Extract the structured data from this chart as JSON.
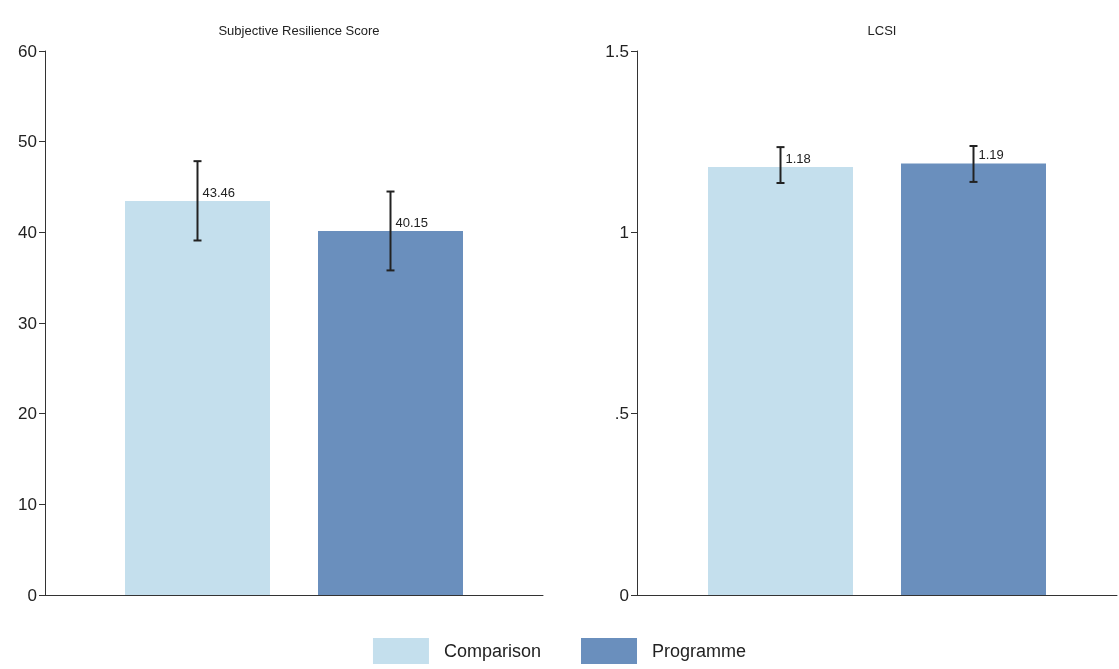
{
  "chart_data": [
    {
      "type": "bar",
      "title": "Subjective Resilience Score",
      "categories": [
        null
      ],
      "series": [
        {
          "name": "Comparison",
          "color": "#c4dfed",
          "values": [
            43.46
          ],
          "errors": [
            [
              39.1,
              47.85
            ]
          ]
        },
        {
          "name": "Programme",
          "color": "#6a8fbd",
          "values": [
            40.15
          ],
          "errors": [
            [
              35.8,
              44.5
            ]
          ]
        }
      ],
      "ylim": [
        0,
        60
      ],
      "yticks": [
        0,
        10,
        20,
        30,
        40,
        50,
        60
      ],
      "data_labels": true,
      "grid": false,
      "legend": "bottom",
      "tick_labels": "y"
    },
    {
      "type": "bar",
      "title": "LCSI",
      "categories": [
        null
      ],
      "series": [
        {
          "color": "#c4dfed",
          "values": [
            1.18
          ],
          "errors": [
            [
              1.136,
              1.235
            ]
          ]
        },
        {
          "color": "#6a8fbd",
          "values": [
            1.19
          ],
          "errors": [
            [
              1.139,
              1.238
            ]
          ]
        }
      ],
      "ylim": [
        0,
        1.5
      ],
      "yticks": [
        0,
        {
          "value": 0.5,
          "label": ".5"
        },
        1,
        1.5
      ],
      "data_labels": true,
      "grid": false,
      "tick_labels": "y"
    }
  ]
}
